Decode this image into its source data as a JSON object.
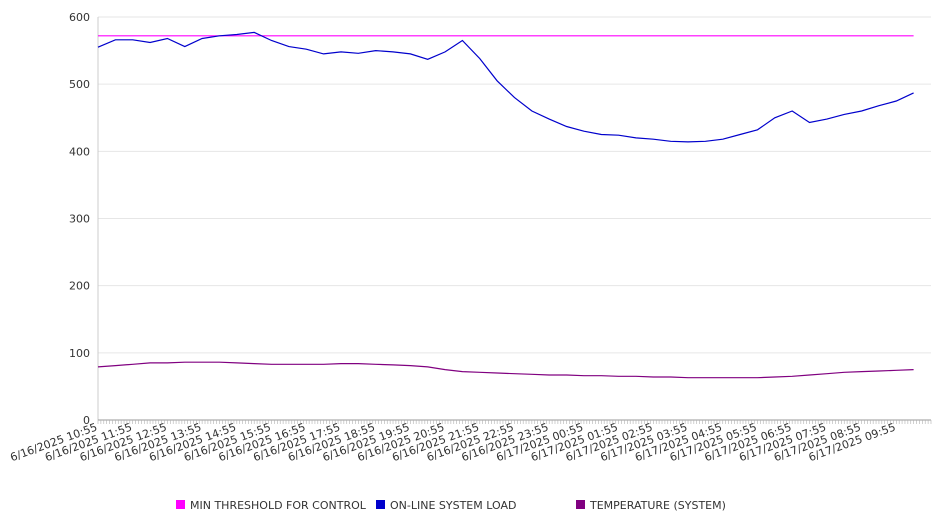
{
  "chart_data": {
    "type": "line",
    "title": "",
    "xlabel": "",
    "ylabel": "",
    "ylim": [
      0,
      600
    ],
    "yticks": [
      0,
      100,
      200,
      300,
      400,
      500,
      600
    ],
    "grid": true,
    "legend_position": "bottom",
    "x_tick_labels": [
      "6/16/2025 10:55",
      "6/16/2025 11:55",
      "6/16/2025 12:55",
      "6/16/2025 13:55",
      "6/16/2025 14:55",
      "6/16/2025 15:55",
      "6/16/2025 16:55",
      "6/16/2025 17:55",
      "6/16/2025 18:55",
      "6/16/2025 19:55",
      "6/16/2025 20:55",
      "6/16/2025 21:55",
      "6/16/2025 22:55",
      "6/16/2025 23:55",
      "6/17/2025 00:55",
      "6/17/2025 01:55",
      "6/17/2025 02:55",
      "6/17/2025 03:55",
      "6/17/2025 04:55",
      "6/17/2025 05:55",
      "6/17/2025 06:55",
      "6/17/2025 07:55",
      "6/17/2025 08:55",
      "6/17/2025 09:55"
    ],
    "x": [
      "6/16/2025 10:55",
      "6/16/2025 11:25",
      "6/16/2025 11:55",
      "6/16/2025 12:25",
      "6/16/2025 12:55",
      "6/16/2025 13:25",
      "6/16/2025 13:55",
      "6/16/2025 14:25",
      "6/16/2025 14:55",
      "6/16/2025 15:25",
      "6/16/2025 15:55",
      "6/16/2025 16:25",
      "6/16/2025 16:55",
      "6/16/2025 17:25",
      "6/16/2025 17:55",
      "6/16/2025 18:25",
      "6/16/2025 18:55",
      "6/16/2025 19:25",
      "6/16/2025 19:55",
      "6/16/2025 20:25",
      "6/16/2025 20:55",
      "6/16/2025 21:25",
      "6/16/2025 21:55",
      "6/16/2025 22:25",
      "6/16/2025 22:55",
      "6/16/2025 23:25",
      "6/16/2025 23:55",
      "6/17/2025 00:25",
      "6/17/2025 00:55",
      "6/17/2025 01:25",
      "6/17/2025 01:55",
      "6/17/2025 02:25",
      "6/17/2025 02:55",
      "6/17/2025 03:25",
      "6/17/2025 03:55",
      "6/17/2025 04:25",
      "6/17/2025 04:55",
      "6/17/2025 05:25",
      "6/17/2025 05:55",
      "6/17/2025 06:25",
      "6/17/2025 06:55",
      "6/17/2025 07:25",
      "6/17/2025 07:55",
      "6/17/2025 08:25",
      "6/17/2025 08:55",
      "6/17/2025 09:25",
      "6/17/2025 09:55",
      "6/17/2025 10:25"
    ],
    "series": [
      {
        "name": "MIN THRESHOLD FOR CONTROL",
        "color": "#ff00ff",
        "values": [
          572,
          572,
          572,
          572,
          572,
          572,
          572,
          572,
          572,
          572,
          572,
          572,
          572,
          572,
          572,
          572,
          572,
          572,
          572,
          572,
          572,
          572,
          572,
          572,
          572,
          572,
          572,
          572,
          572,
          572,
          572,
          572,
          572,
          572,
          572,
          572,
          572,
          572,
          572,
          572,
          572,
          572,
          572,
          572,
          572,
          572,
          572,
          572
        ]
      },
      {
        "name": "ON-LINE SYSTEM LOAD",
        "color": "#0000cc",
        "values": [
          555,
          566,
          566,
          562,
          568,
          556,
          568,
          572,
          574,
          577,
          565,
          556,
          552,
          545,
          548,
          546,
          550,
          548,
          545,
          537,
          548,
          565,
          538,
          505,
          480,
          460,
          448,
          437,
          430,
          425,
          424,
          420,
          418,
          415,
          414,
          415,
          418,
          425,
          432,
          450,
          460,
          443,
          448,
          455,
          460,
          468,
          475,
          487
        ]
      },
      {
        "name": "TEMPERATURE (SYSTEM)",
        "color": "#800080",
        "values": [
          79,
          81,
          83,
          85,
          85,
          86,
          86,
          86,
          85,
          84,
          83,
          83,
          83,
          83,
          84,
          84,
          83,
          82,
          81,
          79,
          75,
          72,
          71,
          70,
          69,
          68,
          67,
          67,
          66,
          66,
          65,
          65,
          64,
          64,
          63,
          63,
          63,
          63,
          63,
          64,
          65,
          67,
          69,
          71,
          72,
          73,
          74,
          75
        ]
      }
    ]
  }
}
